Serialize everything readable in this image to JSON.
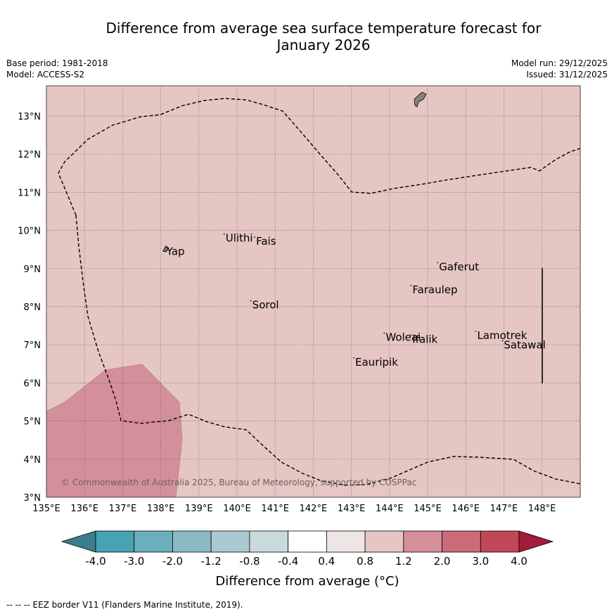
{
  "title_line1": "Difference from average sea surface temperature forecast for",
  "title_line2": "January 2026",
  "base_period": "Base period: 1981-2018",
  "model": "Model: ACCESS-S2",
  "model_run": "Model run: 29/12/2025",
  "issued": "Issued: 31/12/2025",
  "copyright": "© Commonwealth of Australia 2025, Bureau of Meteorology, supported by COSPPac",
  "colorbar_label": "Difference from average (°C)",
  "footer_note": "-- -- -- EEZ border V11 (Flanders Marine Institute, 2019).",
  "colors": {
    "background_anomaly": "#e6c6c3",
    "warm_patch": "#d4909a",
    "grid": "#555555"
  },
  "map": {
    "lon_range": [
      135,
      149
    ],
    "lat_range": [
      3,
      13.8
    ],
    "lon_ticks": [
      135,
      136,
      137,
      138,
      139,
      140,
      141,
      142,
      143,
      144,
      145,
      146,
      147,
      148
    ],
    "lon_tick_labels": [
      "135°E",
      "136°E",
      "137°E",
      "138°E",
      "139°E",
      "140°E",
      "141°E",
      "142°E",
      "143°E",
      "144°E",
      "145°E",
      "146°E",
      "147°E",
      "148°E"
    ],
    "lat_ticks": [
      3,
      4,
      5,
      6,
      7,
      8,
      9,
      10,
      11,
      12,
      13
    ],
    "lat_tick_labels": [
      "3°N",
      "4°N",
      "5°N",
      "6°N",
      "7°N",
      "8°N",
      "9°N",
      "10°N",
      "11°N",
      "12°N",
      "13°N"
    ]
  },
  "places": [
    {
      "name": "Yap",
      "lon": 138.15,
      "lat": 9.5
    },
    {
      "name": "Ulithi",
      "lon": 139.7,
      "lat": 9.85
    },
    {
      "name": "Fais",
      "lon": 140.5,
      "lat": 9.77
    },
    {
      "name": "Sorol",
      "lon": 140.4,
      "lat": 8.1
    },
    {
      "name": "Gaferut",
      "lon": 145.3,
      "lat": 9.1
    },
    {
      "name": "Faraulep",
      "lon": 144.6,
      "lat": 8.5
    },
    {
      "name": "Lamotrek",
      "lon": 146.3,
      "lat": 7.3
    },
    {
      "name": "Satawal",
      "lon": 147.0,
      "lat": 7.05
    },
    {
      "name": "Woleai",
      "lon": 143.9,
      "lat": 7.25
    },
    {
      "name": "Ifalik",
      "lon": 144.6,
      "lat": 7.2
    },
    {
      "name": "Eauripik",
      "lon": 143.1,
      "lat": 6.6
    }
  ],
  "colorbar": {
    "tick_labels": [
      "-4.0",
      "-3.0",
      "-2.0",
      "-1.2",
      "-0.8",
      "-0.4",
      "0.4",
      "0.8",
      "1.2",
      "2.0",
      "3.0",
      "4.0"
    ],
    "bins": [
      {
        "range": "< -4.0",
        "color": "#3b7d8c"
      },
      {
        "range": "-4.0 to -3.0",
        "color": "#48a2b3"
      },
      {
        "range": "-3.0 to -2.0",
        "color": "#6aafbd"
      },
      {
        "range": "-2.0 to -1.2",
        "color": "#8bbac6"
      },
      {
        "range": "-1.2 to -0.8",
        "color": "#abc9d0"
      },
      {
        "range": "-0.8 to -0.4",
        "color": "#c9d9dc"
      },
      {
        "range": "-0.4 to 0.4",
        "color": "#ffffff"
      },
      {
        "range": "0.4 to 0.8",
        "color": "#ede6e4"
      },
      {
        "range": "0.8 to 1.2",
        "color": "#e6c6c3"
      },
      {
        "range": "1.2 to 2.0",
        "color": "#d4909a"
      },
      {
        "range": "2.0 to 3.0",
        "color": "#cc6b78"
      },
      {
        "range": "3.0 to 4.0",
        "color": "#bf4758"
      },
      {
        "range": "> 4.0",
        "color": "#a51b3a"
      }
    ]
  }
}
